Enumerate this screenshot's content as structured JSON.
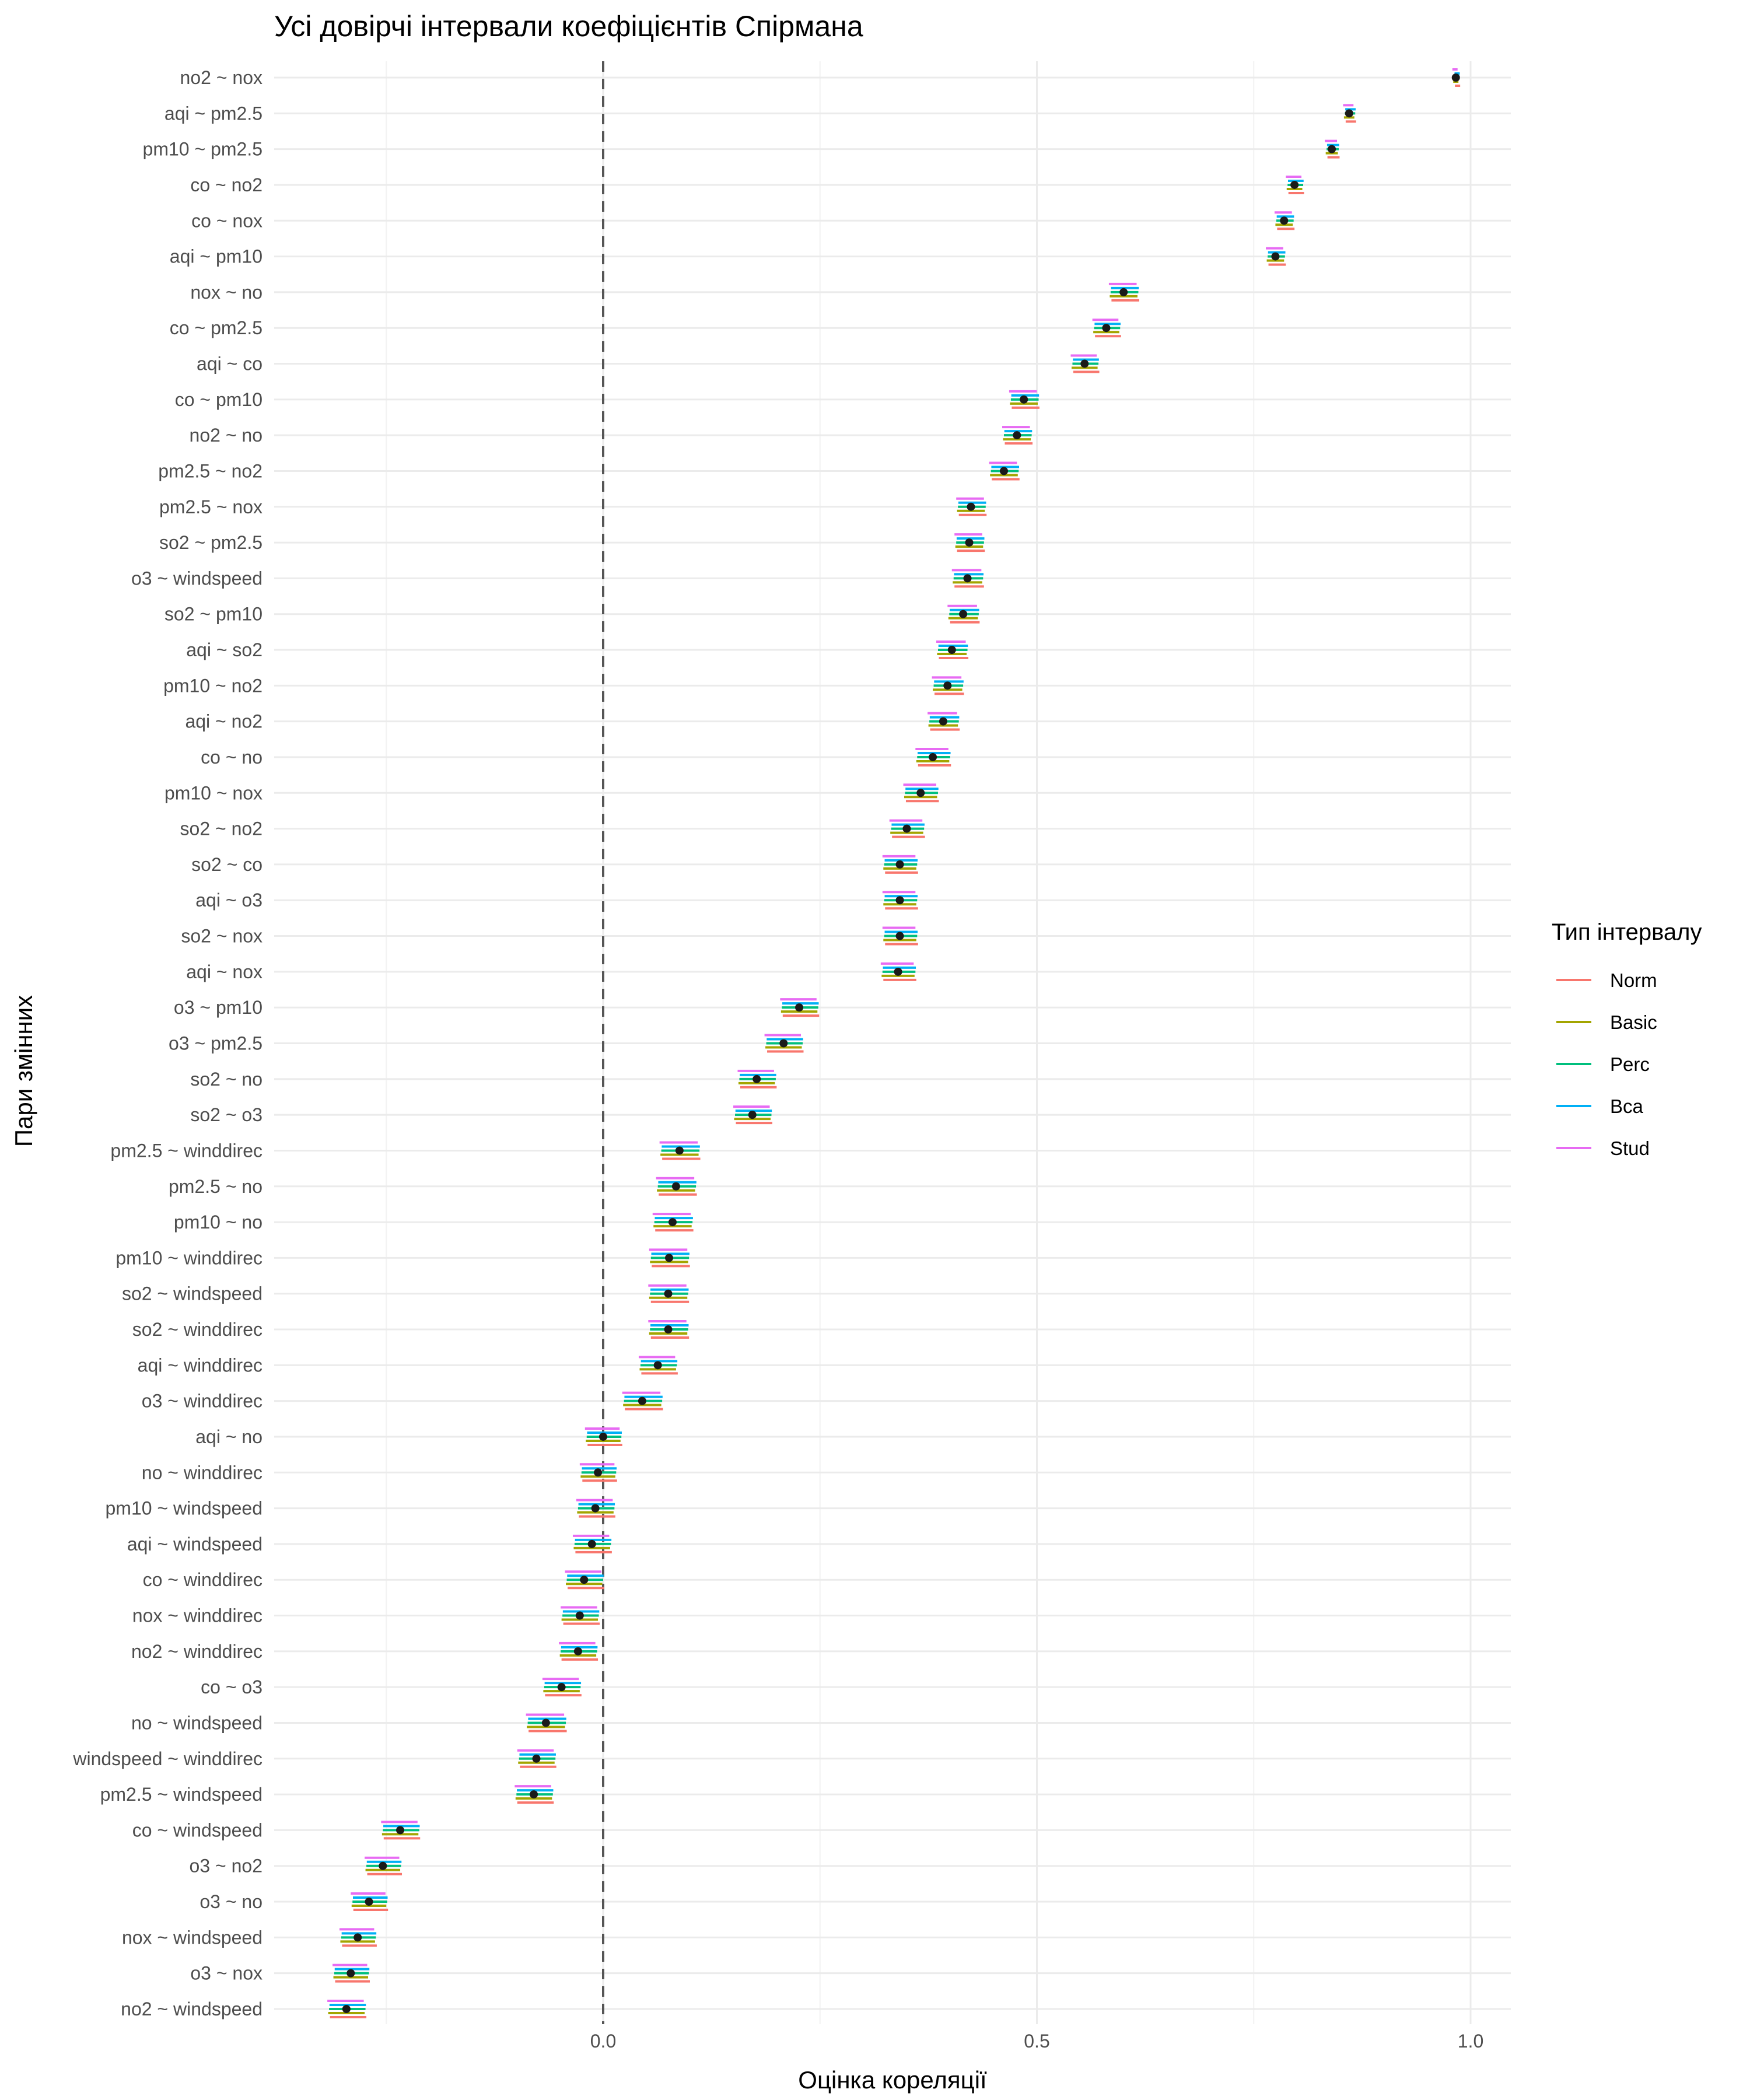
{
  "chart_data": {
    "type": "interval",
    "title": "Усі довірчі інтервали коефіцієнтів Спірмана",
    "xlabel": "Оцінка кореляції",
    "ylabel": "Пари змінних",
    "xlim": [
      -0.39,
      1.05
    ],
    "x_ticks": [
      0.0,
      0.5,
      1.0
    ],
    "x_tick_labels": [
      "0.0",
      "0.5",
      "1.0"
    ],
    "reference_line": 0.0,
    "grid": true,
    "legend": {
      "title": "Тип інтервалу",
      "position": "right",
      "items": [
        {
          "name": "Norm",
          "color": "#F8766D"
        },
        {
          "name": "Basic",
          "color": "#A3A500"
        },
        {
          "name": "Perc",
          "color": "#00BF7D"
        },
        {
          "name": "Bca",
          "color": "#00B0F6"
        },
        {
          "name": "Stud",
          "color": "#E76BF3"
        }
      ]
    },
    "categories": [
      "no2 ~ nox",
      "aqi ~ pm2.5",
      "pm10 ~ pm2.5",
      "co ~ no2",
      "co ~ nox",
      "aqi ~ pm10",
      "nox ~ no",
      "co ~ pm2.5",
      "aqi ~ co",
      "co ~ pm10",
      "no2 ~ no",
      "pm2.5 ~ no2",
      "pm2.5 ~ nox",
      "so2 ~ pm2.5",
      "o3 ~ windspeed",
      "so2 ~ pm10",
      "aqi ~ so2",
      "pm10 ~ no2",
      "aqi ~ no2",
      "co ~ no",
      "pm10 ~ nox",
      "so2 ~ no2",
      "so2 ~ co",
      "aqi ~ o3",
      "so2 ~ nox",
      "aqi ~ nox",
      "o3 ~ pm10",
      "o3 ~ pm2.5",
      "so2 ~ no",
      "so2 ~ o3",
      "pm2.5 ~ winddirec",
      "pm2.5 ~ no",
      "pm10 ~ no",
      "pm10 ~ winddirec",
      "so2 ~ windspeed",
      "so2 ~ winddirec",
      "aqi ~ winddirec",
      "o3 ~ winddirec",
      "aqi ~ no",
      "no ~ winddirec",
      "pm10 ~ windspeed",
      "aqi ~ windspeed",
      "co ~ winddirec",
      "nox ~ winddirec",
      "no2 ~ winddirec",
      "co ~ o3",
      "no ~ windspeed",
      "windspeed ~ winddirec",
      "pm2.5 ~ windspeed",
      "co ~ windspeed",
      "o3 ~ no2",
      "o3 ~ no",
      "nox ~ windspeed",
      "o3 ~ nox",
      "no2 ~ windspeed"
    ],
    "estimates": [
      0.983,
      0.86,
      0.84,
      0.797,
      0.785,
      0.775,
      0.6,
      0.58,
      0.555,
      0.485,
      0.477,
      0.462,
      0.424,
      0.422,
      0.42,
      0.415,
      0.402,
      0.397,
      0.392,
      0.38,
      0.366,
      0.35,
      0.342,
      0.342,
      0.342,
      0.34,
      0.226,
      0.208,
      0.177,
      0.172,
      0.088,
      0.084,
      0.08,
      0.076,
      0.075,
      0.075,
      0.063,
      0.045,
      0.0,
      -0.006,
      -0.009,
      -0.013,
      -0.022,
      -0.027,
      -0.029,
      -0.048,
      -0.066,
      -0.077,
      -0.08,
      -0.234,
      -0.254,
      -0.27,
      -0.283,
      -0.291,
      -0.296
    ],
    "half_widths": [
      0.003,
      0.006,
      0.007,
      0.009,
      0.01,
      0.01,
      0.016,
      0.015,
      0.015,
      0.016,
      0.016,
      0.016,
      0.016,
      0.016,
      0.017,
      0.017,
      0.017,
      0.017,
      0.017,
      0.019,
      0.019,
      0.019,
      0.019,
      0.019,
      0.019,
      0.019,
      0.021,
      0.021,
      0.021,
      0.021,
      0.022,
      0.022,
      0.022,
      0.022,
      0.022,
      0.022,
      0.021,
      0.022,
      0.02,
      0.02,
      0.021,
      0.021,
      0.021,
      0.021,
      0.021,
      0.021,
      0.022,
      0.021,
      0.021,
      0.021,
      0.02,
      0.02,
      0.02,
      0.02,
      0.021
    ]
  }
}
